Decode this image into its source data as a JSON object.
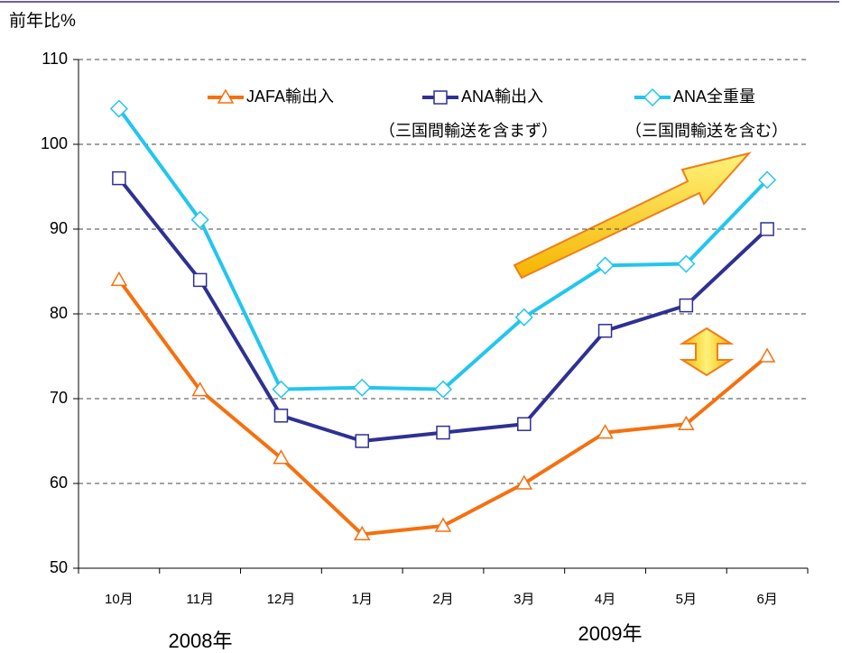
{
  "chart_data": {
    "type": "line",
    "y_axis_label": "前年比%",
    "categories": [
      "10月",
      "11月",
      "12月",
      "1月",
      "2月",
      "3月",
      "4月",
      "5月",
      "6月"
    ],
    "year_labels": [
      "2008年",
      "2009年"
    ],
    "series": [
      {
        "name": "JAFA輸出入",
        "color": "#f5700f",
        "marker": "triangle",
        "values": [
          84,
          71,
          63,
          54,
          55,
          60,
          66,
          67,
          75
        ]
      },
      {
        "name": "ANA輸出入",
        "color": "#2e3192",
        "marker": "square",
        "values": [
          96,
          84,
          68,
          65,
          66,
          67,
          78,
          81,
          90
        ]
      },
      {
        "name": "ANA全重量",
        "color": "#22c6ee",
        "marker": "diamond",
        "values": [
          104.2,
          91.1,
          71.1,
          71.3,
          71.1,
          79.6,
          85.7,
          85.9,
          95.8
        ]
      }
    ],
    "legend_notes": [
      "（三国間輸送を含まず）",
      "（三国間輸送を含む）"
    ],
    "ylim": [
      50,
      110
    ],
    "yticks": [
      50,
      60,
      70,
      80,
      90,
      100,
      110
    ],
    "grid": true
  }
}
